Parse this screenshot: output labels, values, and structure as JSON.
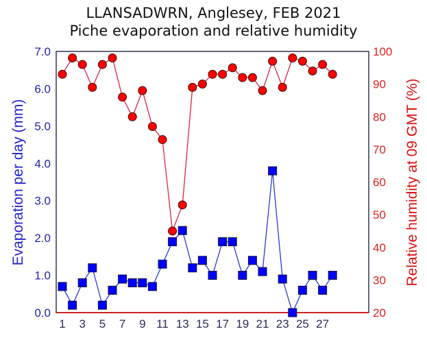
{
  "chart_data": {
    "type": "line",
    "title": "LLANSADWRN, Anglesey, FEB 2021",
    "subtitle": "Piche evaporation and relative humidity",
    "xlabel": "",
    "ylabel": "Evaporation per day (mm)",
    "ylabel_right": "Relative humidity at 09 GMT (%)",
    "x": [
      1,
      2,
      3,
      4,
      5,
      6,
      7,
      8,
      9,
      10,
      11,
      12,
      13,
      14,
      15,
      16,
      17,
      18,
      19,
      20,
      21,
      22,
      23,
      24,
      25,
      26,
      27,
      28
    ],
    "x_ticks": [
      "1",
      "3",
      "5",
      "7",
      "9",
      "11",
      "13",
      "15",
      "17",
      "19",
      "21",
      "23",
      "25",
      "27"
    ],
    "ylim": [
      0,
      7
    ],
    "y_ticks": [
      "0.0",
      "1.0",
      "2.0",
      "3.0",
      "4.0",
      "5.0",
      "6.0",
      "7.0"
    ],
    "ylim_right": [
      20,
      100
    ],
    "y_ticks_right": [
      "20",
      "30",
      "40",
      "50",
      "60",
      "70",
      "80",
      "90",
      "100"
    ],
    "grid": false,
    "legend": "none",
    "series": [
      {
        "name": "Evaporation per day (mm)",
        "axis": "left",
        "marker": "square",
        "color": "#0000ff",
        "line_color": "#2a3acc",
        "values": [
          0.7,
          0.2,
          0.8,
          1.2,
          0.2,
          0.6,
          0.9,
          0.8,
          0.8,
          0.7,
          1.3,
          1.9,
          2.2,
          1.2,
          1.4,
          1.0,
          1.9,
          1.9,
          1.0,
          1.4,
          1.1,
          3.8,
          0.9,
          0.0,
          0.6,
          1.0,
          0.6,
          1.0
        ]
      },
      {
        "name": "Relative humidity at 09 GMT (%)",
        "axis": "right",
        "marker": "circle",
        "color": "#ff0000",
        "line_color": "#dd2244",
        "values": [
          93,
          98,
          96,
          89,
          96,
          98,
          86,
          80,
          88,
          77,
          73,
          45,
          53,
          89,
          90,
          93,
          93,
          95,
          92,
          92,
          88,
          97,
          89,
          98,
          97,
          94,
          96,
          93
        ]
      }
    ]
  },
  "colors": {
    "left_axis": "#2222aa",
    "right_axis": "#dd2222",
    "frame": "#33334d",
    "background": "#ffffff"
  }
}
